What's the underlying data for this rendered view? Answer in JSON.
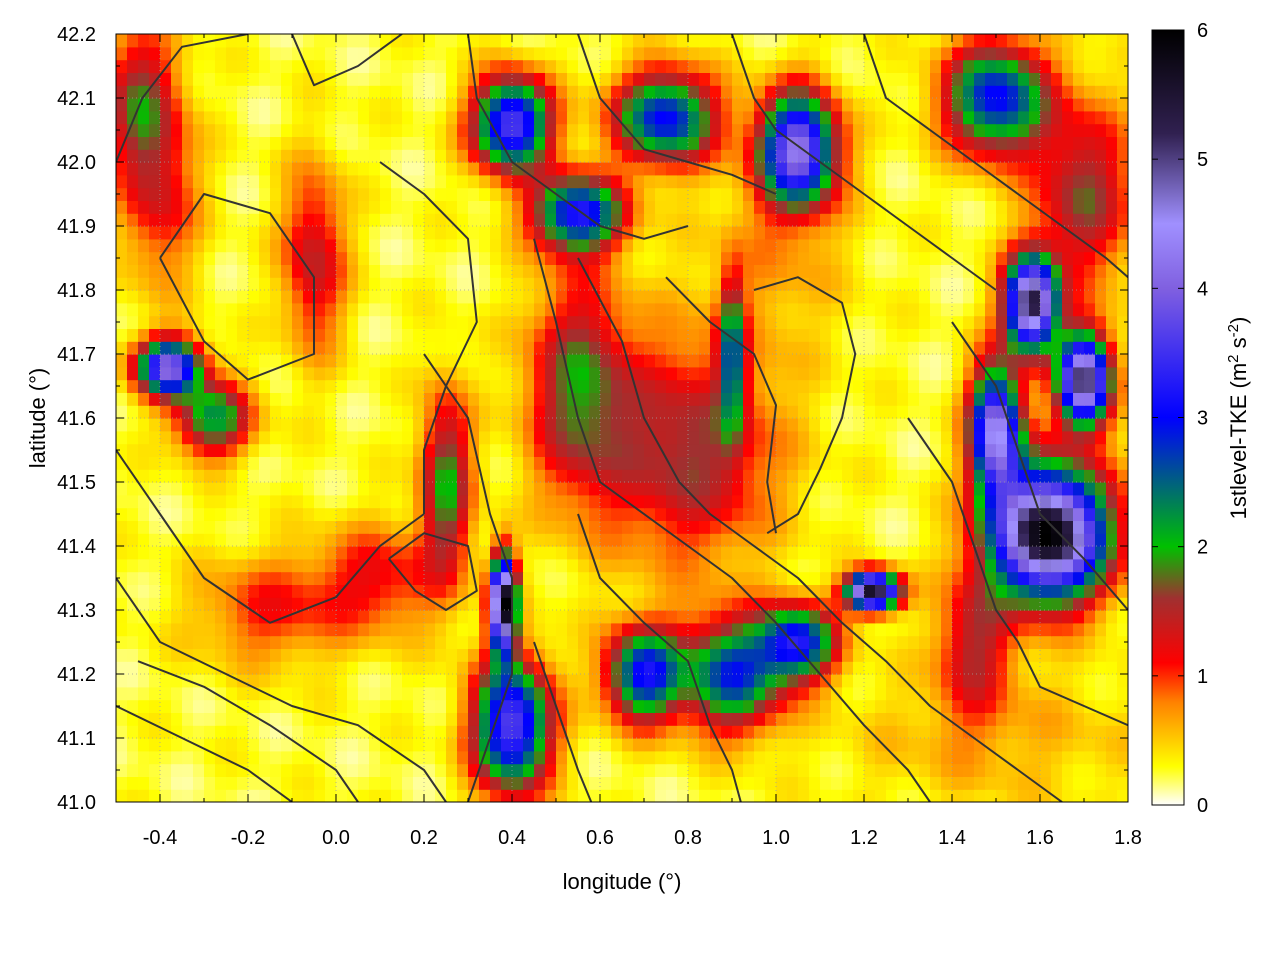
{
  "chart_data": {
    "type": "heatmap",
    "xlabel": "longitude (°)",
    "ylabel": "latitude (°)",
    "colorbar_label": "1stlevel-TKE (m² s⁻²)",
    "colorbar_label_parts": {
      "base": "1stlevel-TKE (m",
      "sup1": "2",
      "mid": " s",
      "sup2": "-2",
      "end": ")"
    },
    "xlim": [
      -0.5,
      1.8
    ],
    "ylim": [
      41.0,
      42.2
    ],
    "zlim": [
      0,
      6
    ],
    "x_ticks": [
      -0.4,
      -0.2,
      0.0,
      0.2,
      0.4,
      0.6,
      0.8,
      1.0,
      1.2,
      1.4,
      1.6,
      1.8
    ],
    "x_tick_labels": [
      "-0.4",
      "-0.2",
      "0.0",
      "0.2",
      "0.4",
      "0.6",
      "0.8",
      "1.0",
      "1.2",
      "1.4",
      "1.6",
      "1.8"
    ],
    "y_ticks": [
      41.0,
      41.1,
      41.2,
      41.3,
      41.4,
      41.5,
      41.6,
      41.7,
      41.8,
      41.9,
      42.0,
      42.1,
      42.2
    ],
    "y_tick_labels": [
      "41.0",
      "41.1",
      "41.2",
      "41.3",
      "41.4",
      "41.5",
      "41.6",
      "41.7",
      "41.8",
      "41.9",
      "42.0",
      "42.1",
      "42.2"
    ],
    "z_ticks": [
      0,
      1,
      2,
      3,
      4,
      5,
      6
    ],
    "z_tick_labels": [
      "0",
      "1",
      "2",
      "3",
      "4",
      "5",
      "6"
    ],
    "grid": true,
    "colormap": [
      "#ffffff",
      "#ffff00",
      "#ff8000",
      "#ff0000",
      "#a03030",
      "#00c000",
      "#0000ff",
      "#8060e0",
      "#a090ff",
      "#302050",
      "#000000"
    ],
    "colormap_stops": [
      0,
      0.3,
      0.8,
      1.1,
      1.6,
      2.0,
      3.0,
      4.0,
      4.5,
      5.2,
      6.0
    ],
    "hotspots": [
      {
        "lon": 1.62,
        "lat": 41.42,
        "tke": 5.8,
        "sx": 0.09,
        "sy": 0.07
      },
      {
        "lon": 1.58,
        "lat": 41.78,
        "tke": 5.2,
        "sx": 0.04,
        "sy": 0.05
      },
      {
        "lon": 1.7,
        "lat": 41.66,
        "tke": 5.0,
        "sx": 0.04,
        "sy": 0.05
      },
      {
        "lon": 1.5,
        "lat": 41.58,
        "tke": 4.2,
        "sx": 0.04,
        "sy": 0.07
      },
      {
        "lon": 0.38,
        "lat": 41.31,
        "tke": 6.0,
        "sx": 0.02,
        "sy": 0.05
      },
      {
        "lon": 0.4,
        "lat": 41.12,
        "tke": 3.5,
        "sx": 0.06,
        "sy": 0.07
      },
      {
        "lon": 1.22,
        "lat": 41.33,
        "tke": 5.5,
        "sx": 0.04,
        "sy": 0.02
      },
      {
        "lon": 0.55,
        "lat": 41.65,
        "tke": 1.5,
        "sx": 0.08,
        "sy": 0.12
      },
      {
        "lon": 0.8,
        "lat": 41.55,
        "tke": 1.4,
        "sx": 0.14,
        "sy": 0.12
      },
      {
        "lon": 0.9,
        "lat": 41.7,
        "tke": 2.0,
        "sx": 0.02,
        "sy": 0.08
      },
      {
        "lon": 0.25,
        "lat": 41.5,
        "tke": 1.7,
        "sx": 0.04,
        "sy": 0.1
      },
      {
        "lon": -0.38,
        "lat": 41.68,
        "tke": 3.8,
        "sx": 0.05,
        "sy": 0.03
      },
      {
        "lon": -0.28,
        "lat": 41.6,
        "tke": 2.0,
        "sx": 0.06,
        "sy": 0.04
      },
      {
        "lon": 0.4,
        "lat": 42.06,
        "tke": 3.5,
        "sx": 0.06,
        "sy": 0.05
      },
      {
        "lon": 0.55,
        "lat": 41.92,
        "tke": 3.0,
        "sx": 0.07,
        "sy": 0.04
      },
      {
        "lon": 0.75,
        "lat": 42.07,
        "tke": 2.8,
        "sx": 0.08,
        "sy": 0.05
      },
      {
        "lon": 1.05,
        "lat": 42.02,
        "tke": 4.0,
        "sx": 0.06,
        "sy": 0.06
      },
      {
        "lon": 1.5,
        "lat": 42.1,
        "tke": 2.8,
        "sx": 0.08,
        "sy": 0.06
      },
      {
        "lon": -0.45,
        "lat": 42.1,
        "tke": 1.3,
        "sx": 0.06,
        "sy": 0.08
      },
      {
        "lon": 0.7,
        "lat": 41.2,
        "tke": 2.8,
        "sx": 0.06,
        "sy": 0.05
      },
      {
        "lon": 0.9,
        "lat": 41.2,
        "tke": 2.5,
        "sx": 0.08,
        "sy": 0.06
      },
      {
        "lon": 1.05,
        "lat": 41.25,
        "tke": 2.8,
        "sx": 0.06,
        "sy": 0.04
      },
      {
        "lon": 1.45,
        "lat": 41.25,
        "tke": 1.2,
        "sx": 0.06,
        "sy": 0.08
      },
      {
        "lon": 0.1,
        "lat": 41.35,
        "tke": 0.9,
        "sx": 0.1,
        "sy": 0.06
      },
      {
        "lon": -0.15,
        "lat": 41.3,
        "tke": 0.8,
        "sx": 0.12,
        "sy": 0.06
      },
      {
        "lon": -0.05,
        "lat": 41.85,
        "tke": 1.2,
        "sx": 0.05,
        "sy": 0.1
      },
      {
        "lon": -0.4,
        "lat": 41.95,
        "tke": 1.0,
        "sx": 0.06,
        "sy": 0.1
      },
      {
        "lon": 1.7,
        "lat": 41.95,
        "tke": 1.4,
        "sx": 0.08,
        "sy": 0.1
      },
      {
        "lon": 1.0,
        "lat": 41.85,
        "tke": 0.4,
        "sx": 0.12,
        "sy": 0.1
      },
      {
        "lon": 1.5,
        "lat": 41.1,
        "tke": 0.35,
        "sx": 0.25,
        "sy": 0.08
      }
    ],
    "contour_lines": [
      [
        [
          -0.5,
          42.0
        ],
        [
          -0.44,
          42.1
        ],
        [
          -0.35,
          42.18
        ],
        [
          -0.2,
          42.2
        ]
      ],
      [
        [
          -0.1,
          42.2
        ],
        [
          -0.05,
          42.12
        ],
        [
          0.05,
          42.15
        ],
        [
          0.15,
          42.2
        ]
      ],
      [
        [
          -0.4,
          41.85
        ],
        [
          -0.3,
          41.72
        ],
        [
          -0.2,
          41.66
        ],
        [
          -0.05,
          41.7
        ],
        [
          -0.05,
          41.82
        ],
        [
          -0.15,
          41.92
        ],
        [
          -0.3,
          41.95
        ],
        [
          -0.4,
          41.85
        ]
      ],
      [
        [
          -0.5,
          41.55
        ],
        [
          -0.4,
          41.45
        ],
        [
          -0.3,
          41.35
        ],
        [
          -0.15,
          41.28
        ],
        [
          0.0,
          41.32
        ],
        [
          0.1,
          41.4
        ],
        [
          0.2,
          41.45
        ]
      ],
      [
        [
          -0.5,
          41.35
        ],
        [
          -0.4,
          41.25
        ],
        [
          -0.25,
          41.2
        ],
        [
          -0.1,
          41.15
        ],
        [
          0.05,
          41.12
        ],
        [
          0.2,
          41.05
        ],
        [
          0.25,
          41.0
        ]
      ],
      [
        [
          -0.5,
          41.15
        ],
        [
          -0.35,
          41.1
        ],
        [
          -0.2,
          41.05
        ],
        [
          -0.1,
          41.0
        ]
      ],
      [
        [
          -0.45,
          41.22
        ],
        [
          -0.3,
          41.18
        ],
        [
          -0.15,
          41.12
        ],
        [
          0.0,
          41.05
        ],
        [
          0.05,
          41.0
        ]
      ],
      [
        [
          0.1,
          42.0
        ],
        [
          0.2,
          41.95
        ],
        [
          0.3,
          41.88
        ],
        [
          0.32,
          41.75
        ],
        [
          0.25,
          41.65
        ],
        [
          0.2,
          41.55
        ],
        [
          0.2,
          41.45
        ]
      ],
      [
        [
          0.2,
          41.7
        ],
        [
          0.3,
          41.6
        ],
        [
          0.35,
          41.45
        ],
        [
          0.4,
          41.35
        ],
        [
          0.4,
          41.2
        ],
        [
          0.35,
          41.1
        ],
        [
          0.3,
          41.0
        ]
      ],
      [
        [
          0.45,
          41.88
        ],
        [
          0.5,
          41.75
        ],
        [
          0.55,
          41.6
        ],
        [
          0.6,
          41.5
        ],
        [
          0.7,
          41.45
        ],
        [
          0.8,
          41.4
        ],
        [
          0.9,
          41.35
        ],
        [
          1.0,
          41.28
        ],
        [
          1.1,
          41.2
        ],
        [
          1.2,
          41.12
        ],
        [
          1.3,
          41.05
        ],
        [
          1.35,
          41.0
        ]
      ],
      [
        [
          0.55,
          41.85
        ],
        [
          0.65,
          41.72
        ],
        [
          0.7,
          41.6
        ],
        [
          0.78,
          41.5
        ],
        [
          0.85,
          41.45
        ],
        [
          0.95,
          41.4
        ],
        [
          1.05,
          41.35
        ],
        [
          1.15,
          41.28
        ],
        [
          1.25,
          41.22
        ],
        [
          1.35,
          41.15
        ],
        [
          1.45,
          41.1
        ],
        [
          1.55,
          41.05
        ],
        [
          1.65,
          41.0
        ]
      ],
      [
        [
          0.75,
          41.82
        ],
        [
          0.85,
          41.75
        ],
        [
          0.95,
          41.7
        ],
        [
          1.0,
          41.62
        ],
        [
          0.98,
          41.5
        ],
        [
          1.0,
          41.42
        ]
      ],
      [
        [
          0.95,
          41.8
        ],
        [
          1.05,
          41.82
        ],
        [
          1.15,
          41.78
        ],
        [
          1.18,
          41.7
        ],
        [
          1.15,
          41.6
        ],
        [
          1.1,
          41.52
        ],
        [
          1.05,
          41.45
        ],
        [
          0.98,
          41.42
        ]
      ],
      [
        [
          0.3,
          42.2
        ],
        [
          0.32,
          42.1
        ],
        [
          0.4,
          42.0
        ],
        [
          0.5,
          41.95
        ],
        [
          0.6,
          41.9
        ],
        [
          0.7,
          41.88
        ],
        [
          0.8,
          41.9
        ]
      ],
      [
        [
          0.55,
          42.2
        ],
        [
          0.6,
          42.1
        ],
        [
          0.7,
          42.02
        ],
        [
          0.8,
          42.0
        ],
        [
          0.9,
          41.98
        ],
        [
          1.0,
          41.95
        ]
      ],
      [
        [
          0.9,
          42.2
        ],
        [
          0.95,
          42.1
        ],
        [
          1.0,
          42.05
        ],
        [
          1.1,
          42.0
        ],
        [
          1.2,
          41.95
        ],
        [
          1.3,
          41.9
        ],
        [
          1.4,
          41.85
        ],
        [
          1.5,
          41.8
        ]
      ],
      [
        [
          1.2,
          42.2
        ],
        [
          1.25,
          42.1
        ],
        [
          1.35,
          42.05
        ],
        [
          1.45,
          42.0
        ],
        [
          1.55,
          41.95
        ],
        [
          1.65,
          41.9
        ],
        [
          1.75,
          41.85
        ],
        [
          1.8,
          41.82
        ]
      ],
      [
        [
          1.4,
          41.75
        ],
        [
          1.5,
          41.65
        ],
        [
          1.55,
          41.55
        ],
        [
          1.6,
          41.45
        ],
        [
          1.7,
          41.38
        ],
        [
          1.8,
          41.3
        ]
      ],
      [
        [
          1.3,
          41.6
        ],
        [
          1.4,
          41.5
        ],
        [
          1.45,
          41.4
        ],
        [
          1.5,
          41.3
        ],
        [
          1.55,
          41.25
        ],
        [
          1.6,
          41.18
        ],
        [
          1.7,
          41.15
        ],
        [
          1.8,
          41.12
        ]
      ],
      [
        [
          0.55,
          41.45
        ],
        [
          0.6,
          41.35
        ],
        [
          0.7,
          41.28
        ],
        [
          0.8,
          41.22
        ],
        [
          0.85,
          41.12
        ],
        [
          0.9,
          41.05
        ],
        [
          0.92,
          41.0
        ]
      ],
      [
        [
          0.45,
          41.25
        ],
        [
          0.5,
          41.15
        ],
        [
          0.55,
          41.05
        ],
        [
          0.58,
          41.0
        ]
      ],
      [
        [
          0.12,
          41.38
        ],
        [
          0.18,
          41.33
        ],
        [
          0.25,
          41.3
        ],
        [
          0.32,
          41.33
        ],
        [
          0.3,
          41.4
        ],
        [
          0.2,
          41.42
        ],
        [
          0.12,
          41.38
        ]
      ]
    ]
  }
}
